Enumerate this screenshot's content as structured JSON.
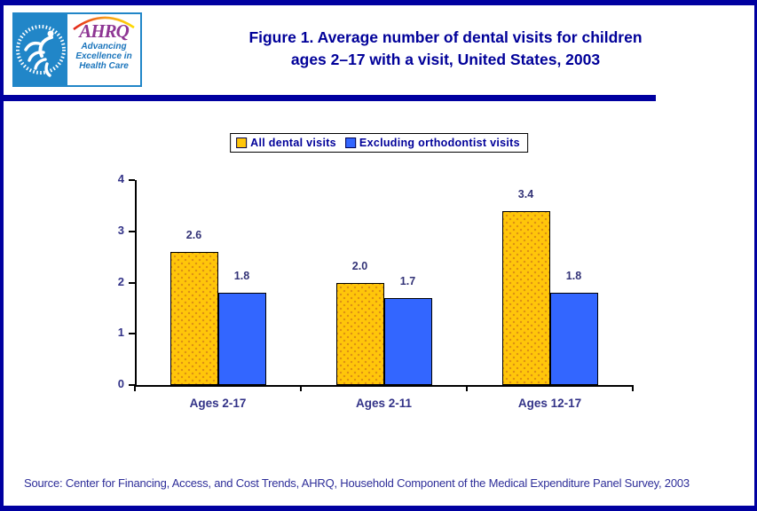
{
  "page": {
    "border_color": "#0000A0",
    "background": "#FFFFFF"
  },
  "header": {
    "title_lines": [
      "Figure 1. Average number of dental visits for children",
      "ages 2–17 with a visit, United States, 2003"
    ],
    "title_color": "#000099",
    "logo": {
      "ahrq_acronym": "AHRQ",
      "tagline": "Advancing Excellence in Health Care",
      "hhs_blue": "#2186C8",
      "ahrq_purple": "#8E3694",
      "tagline_blue": "#1B75BC"
    }
  },
  "chart_data": {
    "type": "bar",
    "title": "Figure 1. Average number of dental visits for children ages 2–17 with a visit, United States, 2003",
    "categories": [
      "Ages 2-17",
      "Ages 2-11",
      "Ages 12-17"
    ],
    "series": [
      {
        "name": "All dental visits",
        "color": "#FFC60A",
        "pattern": "dotted",
        "values": [
          2.6,
          2.0,
          3.4
        ]
      },
      {
        "name": "Excluding orthodontist visits",
        "color": "#3366FF",
        "pattern": "solid",
        "values": [
          1.8,
          1.7,
          1.8
        ]
      }
    ],
    "xlabel": "",
    "ylabel": "",
    "ylim": [
      0,
      4
    ],
    "yticks": [
      "0",
      "1",
      "2",
      "3",
      "4"
    ],
    "grid": false,
    "legend_position": "top-center",
    "bar_value_labels": [
      "2.6",
      "2.0",
      "3.4",
      "1.8",
      "1.7",
      "1.8"
    ]
  },
  "footer": {
    "source": "Source: Center for Financing, Access, and Cost Trends, AHRQ, Household Component of the Medical Expenditure Panel Survey, 2003"
  }
}
